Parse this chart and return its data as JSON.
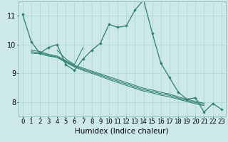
{
  "xlabel": "Humidex (Indice chaleur)",
  "background_color": "#cce8e8",
  "line_color": "#2e7d6e",
  "xlim": [
    -0.5,
    23.5
  ],
  "ylim": [
    7.5,
    11.5
  ],
  "xticks": [
    0,
    1,
    2,
    3,
    4,
    5,
    6,
    7,
    8,
    9,
    10,
    11,
    12,
    13,
    14,
    15,
    16,
    17,
    18,
    19,
    20,
    21,
    22,
    23
  ],
  "yticks": [
    8,
    9,
    10,
    11
  ],
  "series": [
    [
      11.05,
      10.1,
      9.7,
      9.9,
      10.0,
      9.3,
      9.1,
      9.5,
      9.8,
      10.05,
      10.7,
      10.6,
      10.65,
      11.2,
      11.55,
      10.4,
      9.35,
      8.85,
      8.35,
      8.1,
      8.15,
      7.65,
      7.95,
      7.75
    ],
    [
      null,
      null,
      null,
      null,
      9.8,
      9.5,
      9.3,
      9.9,
      null,
      null,
      null,
      null,
      null,
      null,
      null,
      null,
      null,
      null,
      null,
      null,
      null,
      null,
      null,
      null
    ],
    [
      null,
      9.7,
      9.68,
      9.6,
      9.55,
      9.38,
      9.22,
      9.1,
      9.0,
      8.9,
      8.78,
      8.68,
      8.58,
      8.48,
      8.38,
      8.32,
      8.24,
      8.18,
      8.1,
      8.02,
      7.94,
      7.88,
      null,
      null
    ],
    [
      null,
      9.8,
      9.76,
      9.66,
      9.6,
      9.44,
      9.28,
      9.18,
      9.08,
      8.98,
      8.88,
      8.78,
      8.68,
      8.58,
      8.48,
      8.42,
      8.34,
      8.28,
      8.18,
      8.1,
      8.02,
      7.96,
      null,
      null
    ],
    [
      null,
      9.75,
      9.72,
      9.63,
      9.57,
      9.41,
      9.25,
      9.14,
      9.04,
      8.94,
      8.83,
      8.73,
      8.63,
      8.53,
      8.43,
      8.37,
      8.29,
      8.23,
      8.14,
      8.06,
      7.98,
      7.92,
      null,
      null
    ]
  ],
  "grid_color": "#aad4d4",
  "tick_fontsize": 6.5,
  "xlabel_fontsize": 7.5
}
